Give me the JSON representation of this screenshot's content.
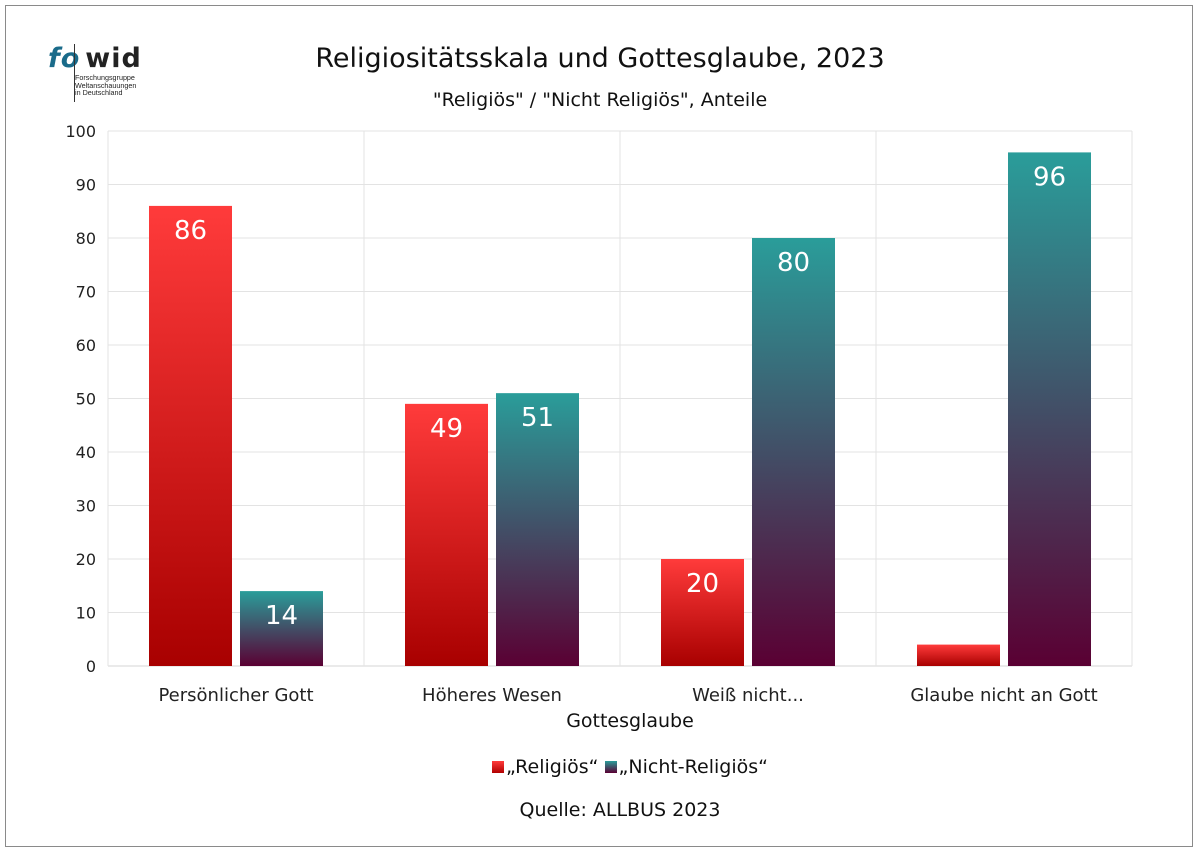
{
  "logo": {
    "fo": "fo",
    "wid": "wid",
    "tagline": "Forschungsgruppe\nWeltanschauungen\nin Deutschland"
  },
  "chart_data": {
    "type": "bar",
    "title": "Religiositätsskala und Gottesglaube, 2023",
    "subtitle": "\"Religiös\" / \"Nicht Religiös\", Anteile",
    "xlabel": "Gottesglaube",
    "ylabel": "",
    "ylim": [
      0,
      100
    ],
    "yticks": [
      0,
      10,
      20,
      30,
      40,
      50,
      60,
      70,
      80,
      90,
      100
    ],
    "categories": [
      "Persönlicher Gott",
      "Höheres Wesen",
      "Weiß nicht...",
      "Glaube nicht an Gott"
    ],
    "series": [
      {
        "name": "„Religiös“",
        "values": [
          86,
          49,
          20,
          4
        ],
        "labels": [
          "86",
          "49",
          "20",
          ""
        ],
        "color_top": "#ff3b3b",
        "color_bottom": "#a80000"
      },
      {
        "name": "„Nicht-Religiös“",
        "values": [
          14,
          51,
          80,
          96
        ],
        "labels": [
          "14",
          "51",
          "80",
          "96"
        ],
        "color_top": "#2a9d9a",
        "color_bottom": "#5a0033"
      }
    ],
    "grid": true,
    "legend_position": "bottom"
  },
  "source": "Quelle: ALLBUS  2023"
}
